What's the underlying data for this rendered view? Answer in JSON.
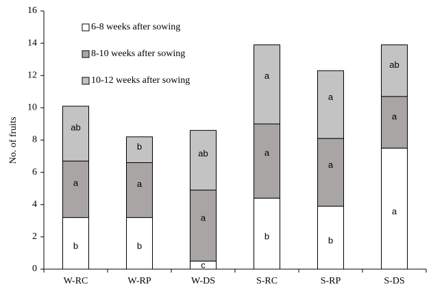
{
  "chart_data": {
    "type": "stacked_bar",
    "y_label": "No. of fruits",
    "categories": [
      "W-RC",
      "W-RP",
      "W-DS",
      "S-RC",
      "S-RP",
      "S-DS"
    ],
    "series": [
      {
        "name": "6-8 weeks after sowing",
        "color": "#ffffff",
        "values": [
          3.2,
          3.2,
          0.5,
          4.4,
          3.9,
          7.5
        ],
        "letters": [
          "b",
          "b",
          "c",
          "b",
          "b",
          "a"
        ]
      },
      {
        "name": "8-10 weeks after sowing",
        "color": "#a9a5a5",
        "values": [
          3.5,
          3.4,
          4.4,
          4.6,
          4.2,
          3.2
        ],
        "letters": [
          "a",
          "a",
          "a",
          "a",
          "a",
          "a"
        ]
      },
      {
        "name": "10-12 weeks after sowing",
        "color": "#c3c3c3",
        "values": [
          3.4,
          1.6,
          3.7,
          4.9,
          4.2,
          3.2
        ],
        "letters": [
          "ab",
          "b",
          "ab",
          "a",
          "a",
          "ab"
        ]
      }
    ],
    "ylim": [
      0,
      16
    ],
    "yticks": [
      0,
      2,
      4,
      6,
      8,
      10,
      12,
      14,
      16
    ],
    "grid": false,
    "legend": "upper-left"
  }
}
